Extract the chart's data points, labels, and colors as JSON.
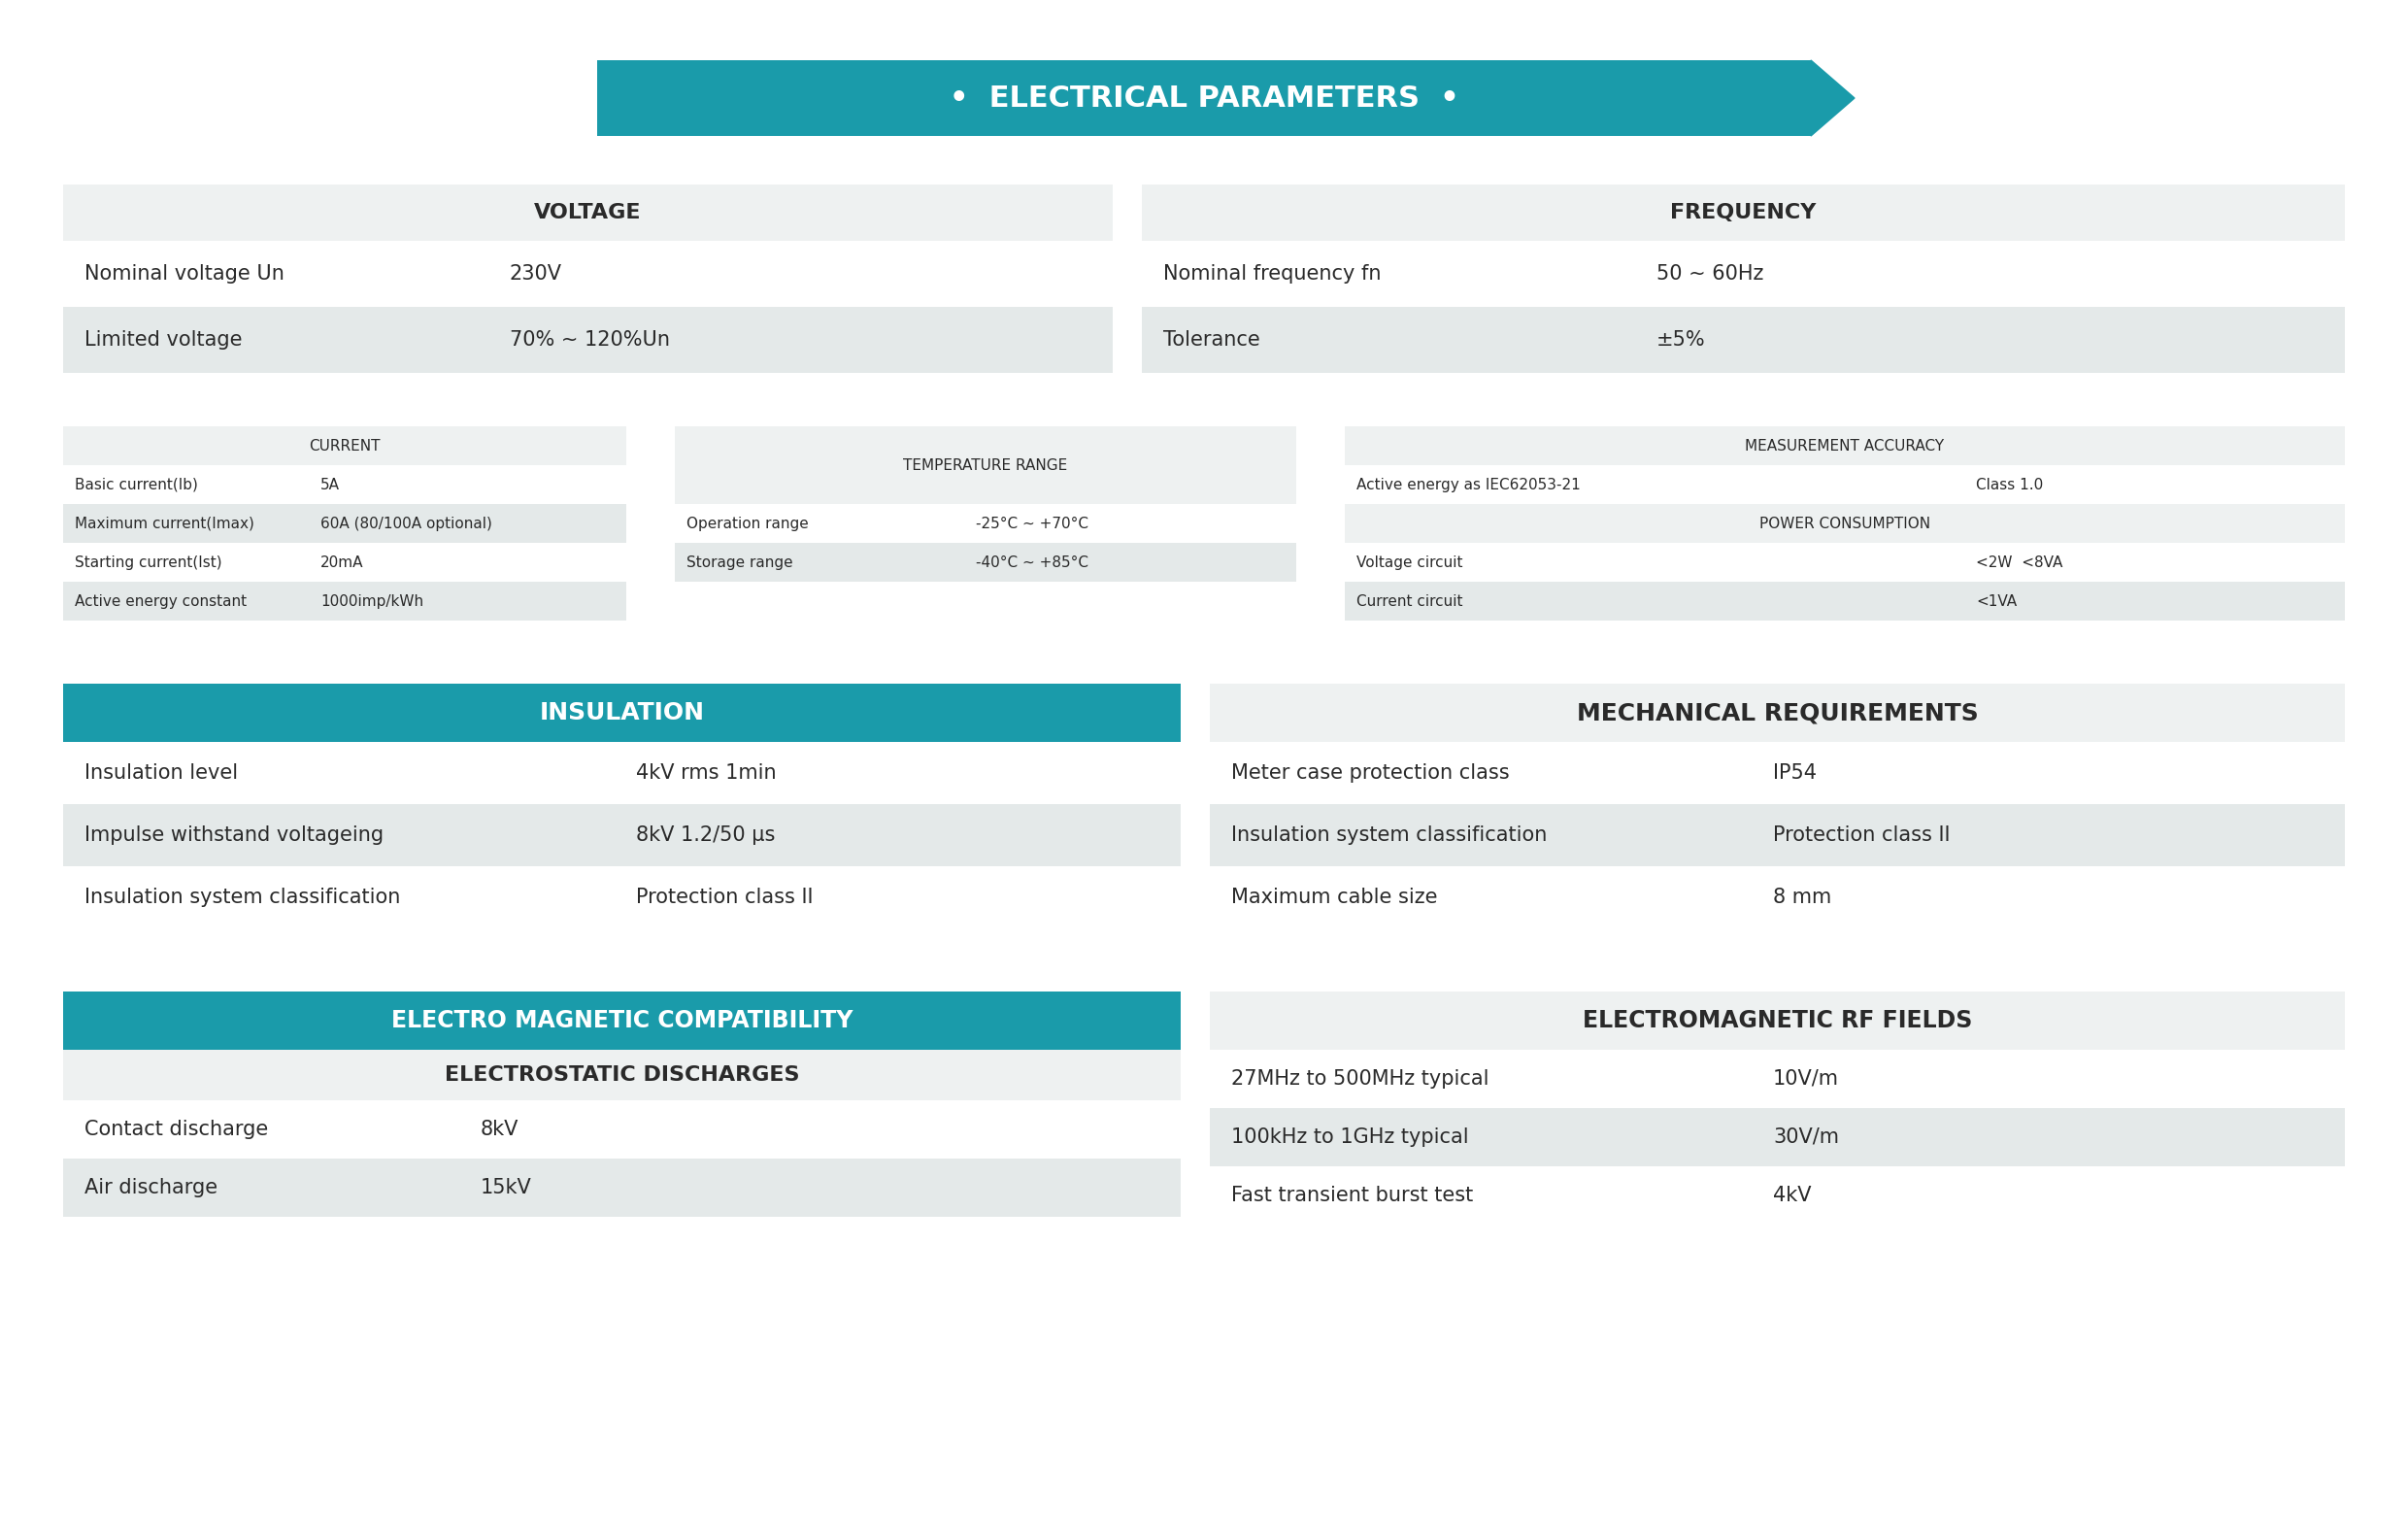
{
  "title": "•  ELECTRICAL PARAMETERS  •",
  "teal": "#1a9baa",
  "light_gray": "#eef1f1",
  "mid_gray": "#d8dede",
  "row_alt": "#e4e9e9",
  "dark_text": "#2a2a2a",
  "white": "#ffffff",
  "bg": "#ffffff",
  "voltage_header": "VOLTAGE",
  "voltage_rows": [
    [
      "Nominal voltage Un",
      "230V"
    ],
    [
      "Limited voltage",
      "70% ~ 120%Un"
    ]
  ],
  "frequency_header": "FREQUENCY",
  "frequency_rows": [
    [
      "Nominal frequency fn",
      "50 ~ 60Hz"
    ],
    [
      "Tolerance",
      "±5%"
    ]
  ],
  "current_header": "CURRENT",
  "current_rows": [
    [
      "Basic current(Ib)",
      "5A"
    ],
    [
      "Maximum current(Imax)",
      "60A (80/100A optional)"
    ],
    [
      "Starting current(Ist)",
      "20mA"
    ],
    [
      "Active energy constant",
      "1000imp/kWh"
    ]
  ],
  "temp_header": "TEMPERATURE RANGE",
  "temp_rows": [
    [
      "Operation range",
      "-25°C ~ +70°C"
    ],
    [
      "Storage range",
      "-40°C ~ +85°C"
    ]
  ],
  "meas_header": "MEASUREMENT ACCURACY",
  "meas_rows": [
    [
      "Active energy as IEC62053-21",
      "Class 1.0"
    ]
  ],
  "power_header": "POWER CONSUMPTION",
  "power_rows": [
    [
      "Voltage circuit",
      "<2W  <8VA"
    ],
    [
      "Current circuit",
      "<1VA"
    ]
  ],
  "insulation_header": "INSULATION",
  "insulation_rows": [
    [
      "Insulation level",
      "4kV rms 1min"
    ],
    [
      "Impulse withstand voltageing",
      "8kV 1.2/50 μs"
    ],
    [
      "Insulation system classification",
      "Protection class II"
    ]
  ],
  "mech_header": "MECHANICAL REQUIREMENTS",
  "mech_rows": [
    [
      "Meter case protection class",
      "IP54"
    ],
    [
      "Insulation system classification",
      "Protection class II"
    ],
    [
      "Maximum cable size",
      "8 mm"
    ]
  ],
  "emc_header": "ELECTRO MAGNETIC COMPATIBILITY",
  "esd_header": "ELECTROSTATIC DISCHARGES",
  "esd_rows": [
    [
      "Contact discharge",
      "8kV"
    ],
    [
      "Air discharge",
      "15kV"
    ]
  ],
  "emrf_header": "ELECTROMAGNETIC RF FIELDS",
  "emrf_rows": [
    [
      "27MHz to 500MHz typical",
      "10V/m"
    ],
    [
      "100kHz to 1GHz typical",
      "30V/m"
    ],
    [
      "Fast transient burst test",
      "4kV"
    ]
  ]
}
